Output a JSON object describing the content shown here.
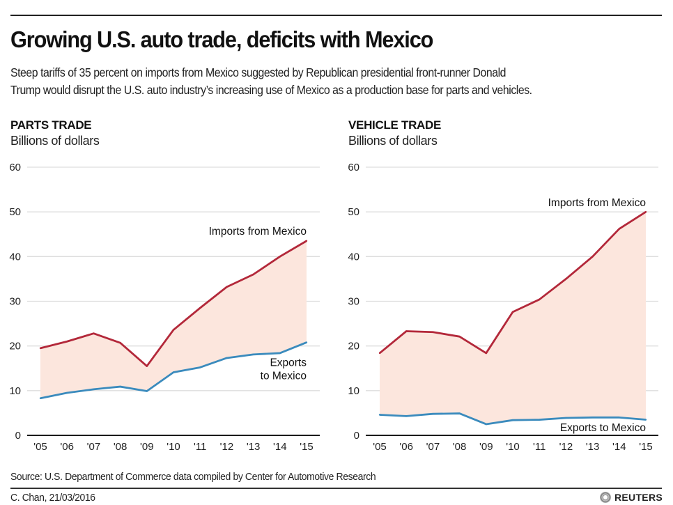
{
  "header": {
    "title": "Growing U.S. auto trade, deficits with Mexico",
    "subtitle_line1": "Steep tariffs of 35 percent on imports from Mexico suggested by Republican presidential front-runner Donald",
    "subtitle_line2": "Trump would disrupt the U.S. auto industry’s increasing use of Mexico as a production base for parts and vehicles."
  },
  "colors": {
    "imports": "#b3283a",
    "exports": "#3b8bbd",
    "fill": "#fce6dd",
    "grid": "#dddddd",
    "axis": "#1a1a1a"
  },
  "chart_data": [
    {
      "type": "area",
      "title": "PARTS TRADE",
      "ylabel": "Billions of dollars",
      "xlabel": "",
      "categories": [
        "'05",
        "'06",
        "'07",
        "'08",
        "'09",
        "'10",
        "'11",
        "'12",
        "'13",
        "'14",
        "'15"
      ],
      "yticks": [
        0,
        10,
        20,
        30,
        40,
        50,
        60
      ],
      "ylim": [
        0,
        60
      ],
      "grid": true,
      "series": [
        {
          "name": "Imports from Mexico",
          "label": "Imports from Mexico",
          "values": [
            19.5,
            21.0,
            22.8,
            20.7,
            15.5,
            23.6,
            28.5,
            33.2,
            36.0,
            40.0,
            43.5
          ]
        },
        {
          "name": "Exports to Mexico",
          "label_lines": [
            "Exports",
            "to Mexico"
          ],
          "values": [
            8.3,
            9.5,
            10.3,
            10.9,
            9.9,
            14.1,
            15.2,
            17.3,
            18.1,
            18.4,
            20.8
          ]
        }
      ]
    },
    {
      "type": "area",
      "title": "VEHICLE TRADE",
      "ylabel": "Billions of dollars",
      "xlabel": "",
      "categories": [
        "'05",
        "'06",
        "'07",
        "'08",
        "'09",
        "'10",
        "'11",
        "'12",
        "'13",
        "'14",
        "'15"
      ],
      "yticks": [
        0,
        10,
        20,
        30,
        40,
        50,
        60
      ],
      "ylim": [
        0,
        60
      ],
      "grid": true,
      "series": [
        {
          "name": "Imports from Mexico",
          "label": "Imports from Mexico",
          "values": [
            18.4,
            23.3,
            23.1,
            22.1,
            18.4,
            27.6,
            30.4,
            35.0,
            40.0,
            46.2,
            50.0
          ]
        },
        {
          "name": "Exports to Mexico",
          "label": "Exports to Mexico",
          "values": [
            4.6,
            4.3,
            4.8,
            4.9,
            2.5,
            3.4,
            3.5,
            3.9,
            4.0,
            4.0,
            3.5
          ]
        }
      ]
    }
  ],
  "footer": {
    "source": "Source: U.S. Department of Commerce data compiled by Center for Automotive Research",
    "credit": "C. Chan, 21/03/2016",
    "brand": "REUTERS",
    "brand_icon": "reuters-logo-icon"
  }
}
